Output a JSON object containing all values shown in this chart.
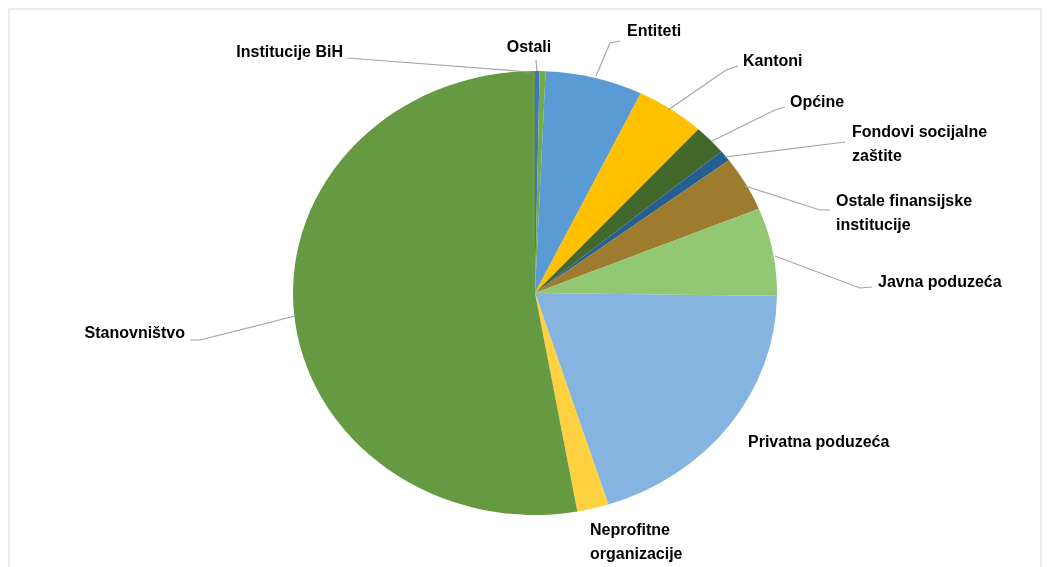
{
  "chart_data": {
    "type": "pie",
    "categories": [
      "Institucije BiH",
      "Ostali",
      "Entiteti",
      "Kantoni",
      "Općine",
      "Fondovi socijalne zaštite",
      "Ostale finansijske institucije",
      "Javna poduzeća",
      "Privatna poduzeća",
      "Neprofitne organizacije",
      "Stanovništvo"
    ],
    "values": [
      0.3,
      0.4,
      6.5,
      4.6,
      2.2,
      0.8,
      4.0,
      6.4,
      19.9,
      2.1,
      52.8
    ],
    "colors": [
      "#4472c4",
      "#70ad47",
      "#5b9bd5",
      "#ffc000",
      "#43682b",
      "#255e91",
      "#9e7c2f",
      "#93c872",
      "#85b4e0",
      "#ffd040",
      "#659a42"
    ]
  }
}
